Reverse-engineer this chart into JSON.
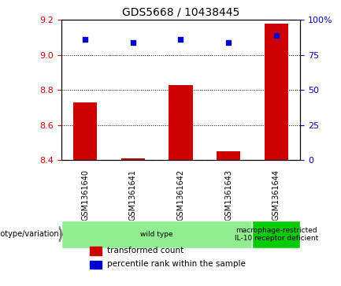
{
  "title": "GDS5668 / 10438445",
  "samples": [
    "GSM1361640",
    "GSM1361641",
    "GSM1361642",
    "GSM1361643",
    "GSM1361644"
  ],
  "transformed_counts": [
    8.73,
    8.41,
    8.83,
    8.45,
    9.18
  ],
  "percentile_ranks": [
    86,
    84,
    86,
    84,
    89
  ],
  "ylim_left": [
    8.4,
    9.2
  ],
  "ylim_right": [
    0,
    100
  ],
  "yticks_left": [
    8.4,
    8.6,
    8.8,
    9.0,
    9.2
  ],
  "yticks_right": [
    0,
    25,
    50,
    75,
    100
  ],
  "bar_color": "#cc0000",
  "dot_color": "#0000cc",
  "bar_bottom": 8.4,
  "genotype_groups": [
    {
      "label": "wild type",
      "samples": [
        0,
        1,
        2,
        3
      ],
      "color": "#90ee90"
    },
    {
      "label": "macrophage-restricted\nIL-10 receptor deficient",
      "samples": [
        4
      ],
      "color": "#00cc00"
    }
  ],
  "legend_items": [
    {
      "label": "transformed count",
      "color": "#cc0000"
    },
    {
      "label": "percentile rank within the sample",
      "color": "#0000cc"
    }
  ],
  "background_color": "#ffffff",
  "plot_bg": "#ffffff",
  "tick_label_color_left": "#cc0000",
  "tick_label_color_right": "#0000cc",
  "grid_color": "#000000",
  "figsize": [
    4.33,
    3.63
  ],
  "dpi": 100
}
